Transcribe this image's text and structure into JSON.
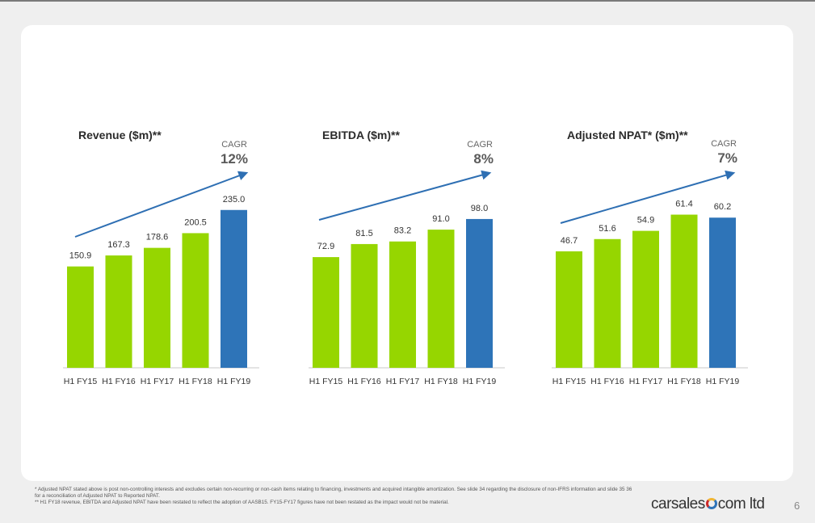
{
  "chart_data": [
    {
      "type": "bar",
      "title": "Revenue ($m)**",
      "categories": [
        "H1 FY15",
        "H1 FY16",
        "H1 FY17",
        "H1 FY18",
        "H1 FY19"
      ],
      "values": [
        150.9,
        167.3,
        178.6,
        200.5,
        235.0
      ],
      "value_labels": [
        "150.9",
        "167.3",
        "178.6",
        "200.5",
        "235.0"
      ],
      "ylim": [
        0,
        260
      ],
      "cagr_label": "CAGR",
      "cagr_value": "12%",
      "colors": [
        "#96d600",
        "#96d600",
        "#96d600",
        "#96d600",
        "#2e74b8"
      ]
    },
    {
      "type": "bar",
      "title": "EBITDA ($m)**",
      "categories": [
        "H1 FY15",
        "H1 FY16",
        "H1 FY17",
        "H1 FY18",
        "H1 FY19"
      ],
      "values": [
        72.9,
        81.5,
        83.2,
        91.0,
        98.0
      ],
      "value_labels": [
        "72.9",
        "81.5",
        "83.2",
        "91.0",
        "98.0"
      ],
      "ylim": [
        0,
        115
      ],
      "cagr_label": "CAGR",
      "cagr_value": "8%",
      "colors": [
        "#96d600",
        "#96d600",
        "#96d600",
        "#96d600",
        "#2e74b8"
      ]
    },
    {
      "type": "bar",
      "title": "Adjusted NPAT* ($m)**",
      "categories": [
        "H1 FY15",
        "H1 FY16",
        "H1 FY17",
        "H1 FY18",
        "H1 FY19"
      ],
      "values": [
        46.7,
        51.6,
        54.9,
        61.4,
        60.2
      ],
      "value_labels": [
        "46.7",
        "51.6",
        "54.9",
        "61.4",
        "60.2"
      ],
      "ylim": [
        0,
        70
      ],
      "cagr_label": "CAGR",
      "cagr_value": "7%",
      "colors": [
        "#96d600",
        "#96d600",
        "#96d600",
        "#96d600",
        "#2e74b8"
      ]
    }
  ],
  "colors": {
    "arrow": "#2e6fb3",
    "axis": "#c8c8c8",
    "green": "#96d600",
    "blue": "#2e74b8"
  },
  "footnotes": {
    "line1": "* Adjusted NPAT stated above is post non-controlling interests and excludes certain non-recurring or non-cash items relating to financing, investments and acquired intangible amortization. See slide 34 regarding the disclosure of non-IFRS information and slide 35 36 for a reconciliation of Adjusted NPAT to Reported NPAT.",
    "line2": "** H1 FY18 revenue, EBITDA and Adjusted NPAT have been restated to reflect the adoption of AASB15. FY15-FY17 figures have not been restated as the impact would not be material."
  },
  "logo": {
    "left": "carsales",
    "right": "com ltd"
  },
  "page_number": "6"
}
